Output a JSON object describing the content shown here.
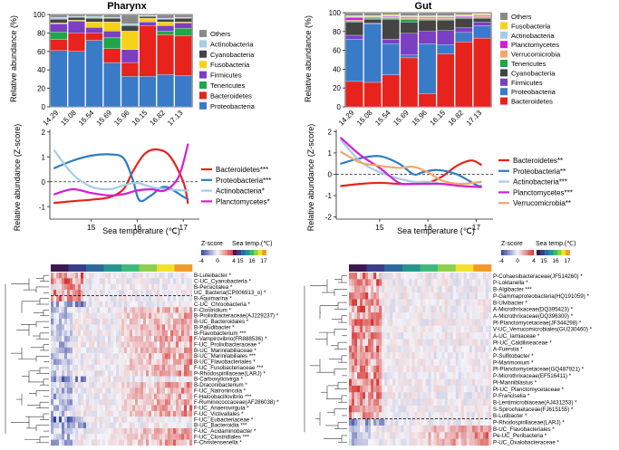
{
  "chart_data": [
    {
      "type": "bar",
      "title": "Pharynx",
      "ylabel": "Relative abundance (%)",
      "ylim": [
        0,
        100
      ],
      "yticks": [
        0,
        20,
        40,
        60,
        80,
        100
      ],
      "stacked": true,
      "categories": [
        "14.29",
        "15.08",
        "15.54",
        "15.69",
        "15.96",
        "16.15",
        "16.82",
        "17.13"
      ],
      "series": [
        {
          "name": "Proteobacteria",
          "color": "#3a7bc8",
          "values": [
            61,
            60,
            72,
            48,
            33,
            33,
            35,
            34
          ]
        },
        {
          "name": "Bacteroidetes",
          "color": "#e8221c",
          "values": [
            12,
            20,
            8,
            15,
            15,
            55,
            43,
            43
          ]
        },
        {
          "name": "Tenericutes",
          "color": "#1ea64a",
          "values": [
            8,
            0,
            0,
            12,
            0,
            0,
            4,
            8
          ]
        },
        {
          "name": "Firmicutes",
          "color": "#7b3fc4",
          "values": [
            9,
            13,
            6,
            7,
            14,
            4,
            6,
            6
          ]
        },
        {
          "name": "Fusobacteria",
          "color": "#f6d11a",
          "values": [
            1,
            1,
            6,
            10,
            20,
            4,
            4,
            1
          ]
        },
        {
          "name": "Cyanobacteria",
          "color": "#444444",
          "values": [
            4,
            3,
            4,
            4,
            6,
            2,
            3,
            4
          ]
        },
        {
          "name": "Actinobacteria",
          "color": "#a8cde6",
          "values": [
            2,
            1,
            2,
            1,
            2,
            1,
            1,
            1
          ]
        },
        {
          "name": "Others",
          "color": "#8a8a8a",
          "values": [
            3,
            2,
            2,
            3,
            10,
            1,
            4,
            3
          ]
        }
      ],
      "legend": [
        "Others",
        "Actinobacteria",
        "Cyanobacteria",
        "Fusobacteria",
        "Firmicutes",
        "Tenericutes",
        "Bacteroidetes",
        "Proteobacteria"
      ]
    },
    {
      "type": "bar",
      "title": "Gut",
      "ylabel": "Relative abundance (%)",
      "ylim": [
        0,
        100
      ],
      "yticks": [
        0,
        20,
        40,
        60,
        80,
        100
      ],
      "stacked": true,
      "categories": [
        "14.29",
        "15.08",
        "15.54",
        "15.69",
        "15.96",
        "16.15",
        "16.82",
        "17.13"
      ],
      "series": [
        {
          "name": "Bacteroidetes",
          "color": "#e8221c",
          "values": [
            27,
            26,
            34,
            52,
            14,
            56,
            69,
            73
          ]
        },
        {
          "name": "Proteobacteria",
          "color": "#3a7bc8",
          "values": [
            45,
            62,
            33,
            3,
            53,
            10,
            10,
            13
          ]
        },
        {
          "name": "Firmicutes",
          "color": "#7b3fc4",
          "values": [
            4,
            1,
            5,
            23,
            13,
            15,
            5,
            4
          ]
        },
        {
          "name": "Cyanobacteria",
          "color": "#444444",
          "values": [
            14,
            4,
            21,
            12,
            12,
            11,
            10,
            4
          ]
        },
        {
          "name": "Tenericutes",
          "color": "#1ea64a",
          "values": [
            1,
            1,
            1,
            3,
            1,
            1,
            1,
            1
          ]
        },
        {
          "name": "Verrucomicrobia",
          "color": "#f2a86a",
          "values": [
            1,
            0,
            1,
            1,
            1,
            1,
            0,
            1
          ]
        },
        {
          "name": "Planctomycetes",
          "color": "#d21fd6",
          "values": [
            3,
            1,
            1,
            1,
            1,
            1,
            1,
            1
          ]
        },
        {
          "name": "Actinobacteria",
          "color": "#a8cde6",
          "values": [
            1,
            1,
            1,
            1,
            1,
            1,
            1,
            1
          ]
        },
        {
          "name": "Fusobacteria",
          "color": "#f6d11a",
          "values": [
            1,
            1,
            1,
            1,
            1,
            1,
            1,
            1
          ]
        },
        {
          "name": "Others",
          "color": "#8a8a8a",
          "values": [
            3,
            3,
            2,
            3,
            3,
            3,
            2,
            1
          ]
        }
      ],
      "legend": [
        "Others",
        "Fusobacteria",
        "Actinobacteria",
        "Planctomycetes",
        "Verrucomicrobia",
        "Tenericutes",
        "Cyanobacteria",
        "Firmicutes",
        "Proteobacteria",
        "Bacteroidetes"
      ]
    },
    {
      "type": "line",
      "xlabel": "Sea temperature (℃)",
      "ylabel": "Relative abundance (Z-score)",
      "xlim": [
        14.1,
        17.35
      ],
      "xticks": [
        15,
        16,
        17
      ],
      "ylim": [
        -1.5,
        2.1
      ],
      "yticks": [
        -1,
        0,
        1,
        2
      ],
      "baseline": 0,
      "series": [
        {
          "name": "Bacteroidetes***",
          "color": "#e8221c",
          "x": [
            14.2,
            14.6,
            15.0,
            15.4,
            15.7,
            15.9,
            16.15,
            16.4,
            16.7,
            17.0,
            17.1
          ],
          "y": [
            -0.85,
            -0.78,
            -0.72,
            -0.62,
            -0.3,
            0.4,
            1.1,
            1.3,
            1.05,
            0.0,
            -0.85
          ]
        },
        {
          "name": "Proteobacteria***",
          "color": "#2e7cc4",
          "x": [
            14.2,
            14.6,
            15.0,
            15.4,
            15.7,
            15.9,
            16.05,
            16.3,
            16.6,
            17.0,
            17.1
          ],
          "y": [
            0.55,
            0.85,
            1.05,
            1.1,
            0.95,
            0.1,
            -0.75,
            -0.55,
            -0.2,
            -0.6,
            -0.7
          ]
        },
        {
          "name": "Actinobacteria*",
          "color": "#a6cbe6",
          "x": [
            14.2,
            14.6,
            15.0,
            15.4,
            15.7,
            16.0,
            16.4,
            17.0,
            17.1
          ],
          "y": [
            1.25,
            0.3,
            -0.2,
            -0.3,
            -0.15,
            -0.05,
            -0.25,
            -0.35,
            -0.35
          ]
        },
        {
          "name": "Planctomycetes*",
          "color": "#d21fd6",
          "x": [
            14.2,
            14.6,
            15.0,
            15.4,
            15.7,
            16.0,
            16.3,
            16.6,
            16.9,
            17.1
          ],
          "y": [
            -0.5,
            -0.3,
            -0.45,
            -0.55,
            -0.5,
            -0.35,
            -0.3,
            -0.35,
            0.2,
            1.5
          ]
        }
      ]
    },
    {
      "type": "line",
      "xlabel": "Sea temperature (℃)",
      "ylabel": "Relative abundance (Z-score)",
      "xlim": [
        14.1,
        17.35
      ],
      "xticks": [
        15,
        16,
        17
      ],
      "ylim": [
        -2.1,
        2.1
      ],
      "yticks": [
        -2,
        -1,
        0,
        1,
        2
      ],
      "baseline": 0,
      "series": [
        {
          "name": "Bacteroidetes**",
          "color": "#e8221c",
          "x": [
            14.2,
            14.6,
            15.0,
            15.4,
            15.7,
            16.0,
            16.3,
            16.6,
            16.9,
            17.1
          ],
          "y": [
            -0.55,
            -0.45,
            -0.4,
            -0.45,
            -0.45,
            -0.4,
            -0.1,
            0.4,
            0.65,
            0.45
          ]
        },
        {
          "name": "Proteobacteria**",
          "color": "#2e7cc4",
          "x": [
            14.2,
            14.6,
            15.0,
            15.4,
            15.7,
            15.9,
            16.2,
            16.6,
            17.0,
            17.1
          ],
          "y": [
            0.5,
            0.75,
            0.85,
            0.5,
            0.0,
            0.1,
            0.2,
            0.0,
            -0.5,
            -0.55
          ]
        },
        {
          "name": "Actinobacteria***",
          "color": "#a6cbe6",
          "x": [
            14.2,
            14.6,
            15.0,
            15.4,
            15.7,
            16.0,
            16.3,
            16.7,
            17.1
          ],
          "y": [
            1.6,
            0.6,
            0.1,
            -0.2,
            -0.35,
            -0.35,
            -0.45,
            -0.55,
            -0.6
          ]
        },
        {
          "name": "Planctomycetes***",
          "color": "#d21fd6",
          "x": [
            14.2,
            14.6,
            15.0,
            15.4,
            15.7,
            16.0,
            16.3,
            16.7,
            17.1
          ],
          "y": [
            1.7,
            0.9,
            0.3,
            -0.4,
            -0.45,
            -0.45,
            -0.45,
            -0.55,
            -0.6
          ]
        },
        {
          "name": "Verrucomicrobia**",
          "color": "#f2a86a",
          "x": [
            14.2,
            14.6,
            15.0,
            15.4,
            15.7,
            16.0,
            16.3,
            16.7,
            17.1
          ],
          "y": [
            1.05,
            0.55,
            0.4,
            0.3,
            0.35,
            0.1,
            -0.3,
            -0.45,
            -0.35
          ]
        }
      ]
    },
    {
      "type": "heatmap",
      "legend_title_z": "Z-score",
      "z_ticks": [
        -4,
        0,
        4
      ],
      "legend_title_temp": "Sea temp.(℃)",
      "temp_ticks": [
        15,
        16,
        17
      ],
      "rows": [
        "B-Luteibacter *",
        "C-UC_Cyanobacteria *",
        "B-Persicitalea *",
        "UC_Bacteria(CP006913_o) *",
        "B-Aquimarina *",
        "C-UC_Chroobacteria *",
        "F-Clostridium *",
        "B-Prolixibacteraceae(AJ229237) *",
        "B-UC_Bacteroidales *",
        "B-Paludibacter *",
        "B-Flavobacterium ***",
        "F-Vampirovibrio(FR888536) *",
        "F-UC_Prolixibacteraceae *",
        "B-UC_Marinilabiliaceae *",
        "B-UC_Marinilabiliales ***",
        "B-UC_Flavobacteriales *",
        "F-UC_Fusobacteriaceae ***",
        "P-Rhodospirillaceae(LARJ) *",
        "B-Carboxylicivirga *",
        "B-Draconibacterium *",
        "F-UC_Natronincola *",
        "F-Haloobacillovibrio ***",
        "F-Ruminococcaceae(AF286038) *",
        "F-UC_Anaerovirgula *",
        "F-UC_Victivallales *",
        "F-UC_Eubacteriaceae *",
        "B-UC_Bacteroidia ***",
        "F-UC_Acidaminobacter *",
        "F-UC_Clostridiales ***",
        "F-Christensenella *"
      ]
    },
    {
      "type": "heatmap",
      "legend_title_z": "Z-score",
      "z_ticks": [
        -4,
        0,
        4
      ],
      "legend_title_temp": "Sea temp.(℃)",
      "temp_ticks": [
        15,
        16,
        17
      ],
      "rows": [
        "P-Cohaesibacteraceae(JF514260) *",
        "P-Loktanella *",
        "B-Algibacter ***",
        "P-Gammaproteobacteria(HQ191059) *",
        "B-Ulvibacter *",
        "A-Microthrixaceae(DQ395423) *",
        "A-Microthrixaceae(DQ396300) *",
        "Pl-Planctomycetaceae(JF344298) *",
        "V-UC_Verrucomicrobiales(GU230460) *",
        "A-UC_Iamiaceae *",
        "Pl-UC_Caldilineaceae *",
        "A-Fuerstia *",
        "P-Sulfitobacter *",
        "P-Marimonium *",
        "Pl-Planctomycetaceae(GQ487921) *",
        "P-Microthrixaceae(EF516411) *",
        "Pl-Manniblastus *",
        "Pl-UC_Planctomycetaceae *",
        "P-Franciselia *",
        "B-Lentimicrobiaceae(AJ431253) *",
        "S-Spirochaetaceae(FJ615155) *",
        "B-Lutibacter *",
        "P-Rhodospirillaceae(LARJ) *",
        "B-UC_Flavobacteriales *",
        "Pe-UC_Peribacteria *",
        "P-UC_Oxalobacteraceae *"
      ]
    }
  ],
  "colors": {
    "temp_scale": [
      "#3b1a52",
      "#3a3f8a",
      "#2f6a9c",
      "#26958e",
      "#3fb97a",
      "#8ecf4d",
      "#f2e02b",
      "#f29a2e"
    ],
    "heat_low": "#2f3e9e",
    "heat_mid": "#f4f4f8",
    "heat_high": "#d7302b"
  }
}
